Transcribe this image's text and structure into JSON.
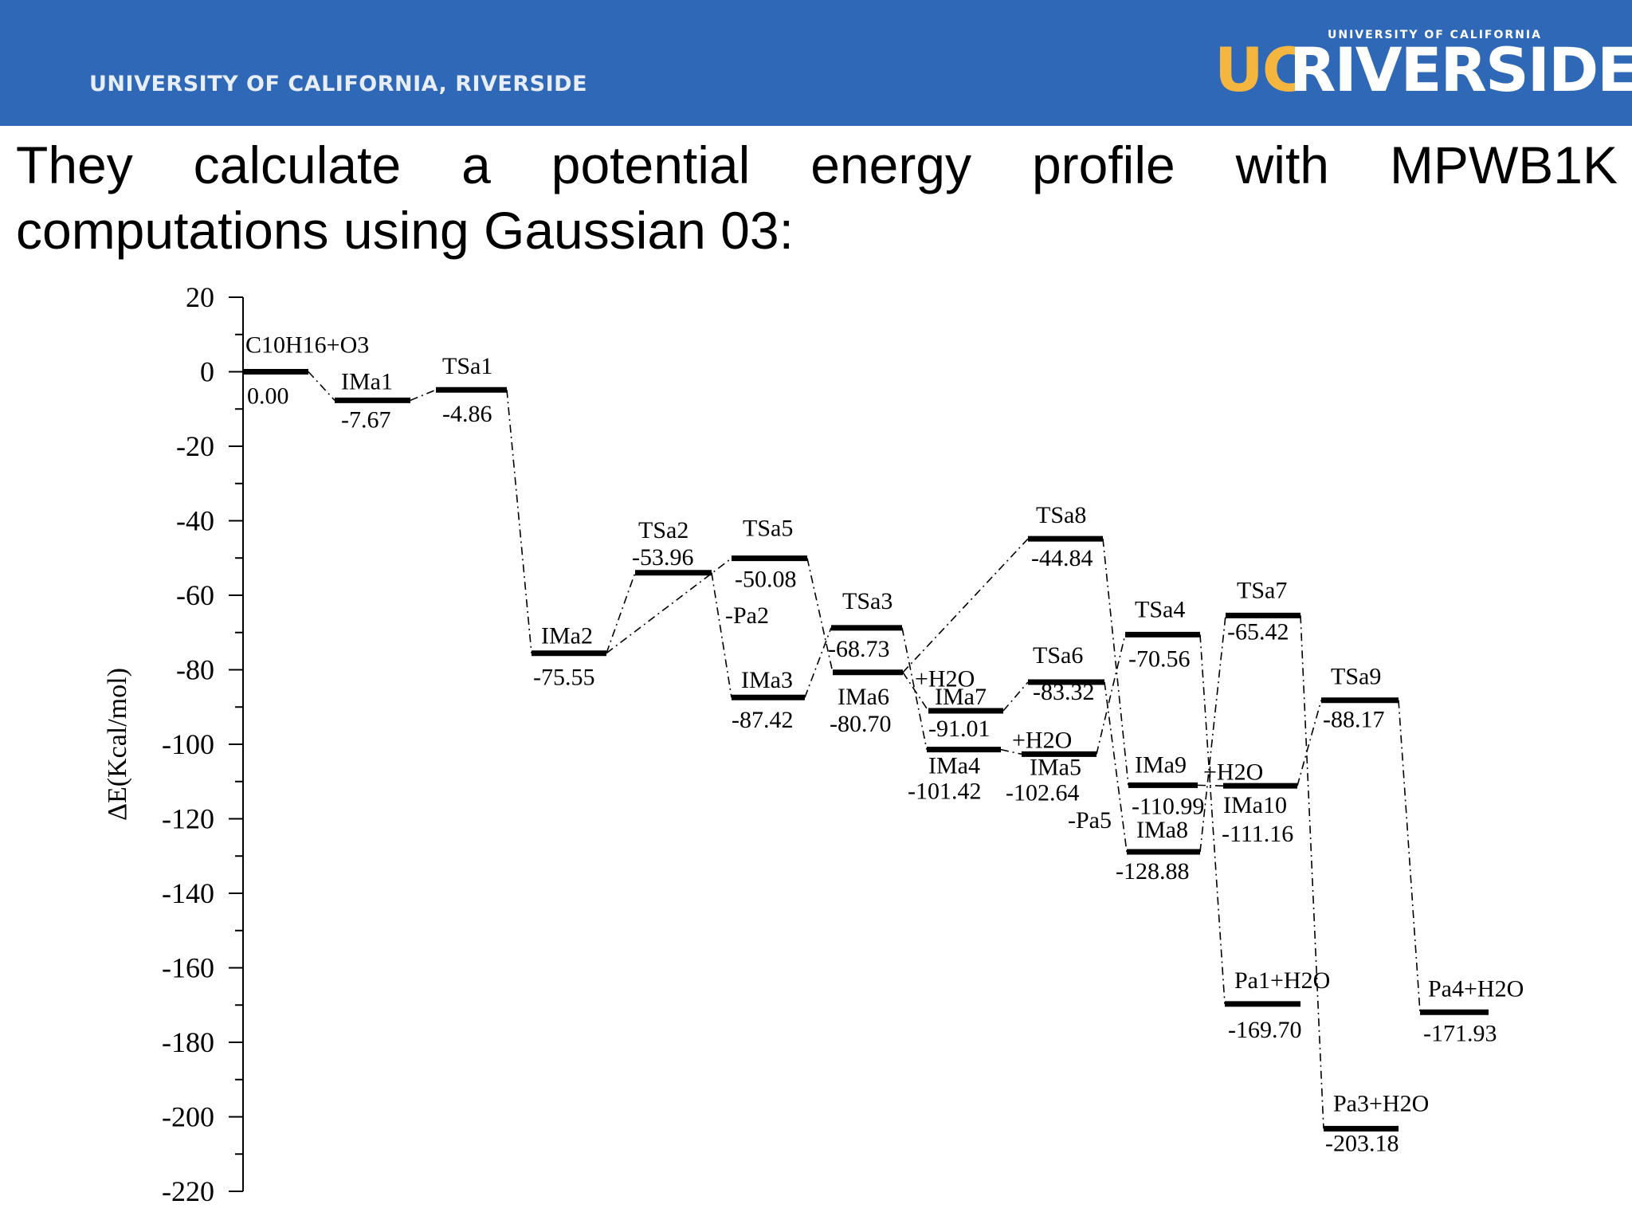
{
  "header": {
    "institution": "UNIVERSITY OF CALIFORNIA, RIVERSIDE",
    "logo_uc": "UC",
    "logo_riverside": "RIVERSIDE",
    "logo_small": "UNIVERSITY OF CALIFORNIA"
  },
  "slide": {
    "heading": "They calculate a potential energy profile with MPWB1K computations using Gaussian 03:"
  },
  "colors": {
    "banner": "#2f68b7",
    "logo_gold": "#f4b63f"
  },
  "chart_data": {
    "type": "energy-profile",
    "title": "",
    "xlabel": "",
    "ylabel": "ΔE(Kcal/mol)",
    "ylim": [
      -220,
      20
    ],
    "yticks": [
      20,
      0,
      -20,
      -40,
      -60,
      -80,
      -100,
      -120,
      -140,
      -160,
      -180,
      -200,
      -220
    ],
    "grid": false,
    "levels": [
      {
        "id": "start",
        "name": "C10H16+O3",
        "value": 0.0,
        "value_label": "0.00"
      },
      {
        "id": "IMa1",
        "name": "IMa1",
        "value": -7.67,
        "value_label": "-7.67"
      },
      {
        "id": "TSa1",
        "name": "TSa1",
        "value": -4.86,
        "value_label": "-4.86"
      },
      {
        "id": "IMa2",
        "name": "IMa2",
        "value": -75.55,
        "value_label": "-75.55"
      },
      {
        "id": "TSa2",
        "name": "TSa2",
        "value": -53.96,
        "value_label": "-53.96"
      },
      {
        "id": "TSa5",
        "name": "TSa5",
        "value": -50.08,
        "value_label": "-50.08"
      },
      {
        "id": "IMa3",
        "name": "IMa3",
        "value": -87.42,
        "value_label": "-87.42"
      },
      {
        "id": "TSa3",
        "name": "TSa3",
        "value": -68.73,
        "value_label": "-68.73"
      },
      {
        "id": "IMa6",
        "name": "IMa6",
        "value": -80.7,
        "value_label": "-80.70"
      },
      {
        "id": "IMa7",
        "name": "IMa7",
        "value": -91.01,
        "value_label": "-91.01"
      },
      {
        "id": "IMa4",
        "name": "IMa4",
        "value": -101.42,
        "value_label": "-101.42"
      },
      {
        "id": "TSa8",
        "name": "TSa8",
        "value": -44.84,
        "value_label": "-44.84"
      },
      {
        "id": "TSa6",
        "name": "TSa6",
        "value": -83.32,
        "value_label": "-83.32"
      },
      {
        "id": "IMa5",
        "name": "IMa5",
        "value": -102.64,
        "value_label": "-102.64"
      },
      {
        "id": "TSa4",
        "name": "TSa4",
        "value": -70.56,
        "value_label": "-70.56"
      },
      {
        "id": "IMa9",
        "name": "IMa9",
        "value": -110.99,
        "value_label": "-110.99"
      },
      {
        "id": "IMa8",
        "name": "IMa8",
        "value": -128.88,
        "value_label": "-128.88"
      },
      {
        "id": "TSa7",
        "name": "TSa7",
        "value": -65.42,
        "value_label": "-65.42"
      },
      {
        "id": "IMa10",
        "name": "IMa10",
        "value": -111.16,
        "value_label": "-111.16"
      },
      {
        "id": "Pa1",
        "name": "Pa1+H2O",
        "value": -169.7,
        "value_label": "-169.70"
      },
      {
        "id": "TSa9",
        "name": "TSa9",
        "value": -88.17,
        "value_label": "-88.17"
      },
      {
        "id": "Pa3",
        "name": "Pa3+H2O",
        "value": -203.18,
        "value_label": "-203.18"
      },
      {
        "id": "Pa4",
        "name": "Pa4+H2O",
        "value": -171.93,
        "value_label": "-171.93"
      }
    ],
    "side_labels": [
      "-Pa2",
      "-Pa5",
      "+H2O",
      "+H2O",
      "+H2O"
    ],
    "connections": [
      [
        "start",
        "IMa1"
      ],
      [
        "IMa1",
        "TSa1"
      ],
      [
        "TSa1",
        "IMa2"
      ],
      [
        "IMa2",
        "TSa2"
      ],
      [
        "IMa2",
        "TSa5"
      ],
      [
        "TSa2",
        "IMa3"
      ],
      [
        "TSa5",
        "IMa6"
      ],
      [
        "IMa3",
        "TSa3"
      ],
      [
        "TSa3",
        "IMa4"
      ],
      [
        "IMa6",
        "TSa8"
      ],
      [
        "IMa6",
        "IMa7"
      ],
      [
        "IMa7",
        "TSa6"
      ],
      [
        "IMa4",
        "IMa5"
      ],
      [
        "TSa8",
        "IMa9"
      ],
      [
        "TSa6",
        "IMa8"
      ],
      [
        "IMa5",
        "TSa4"
      ],
      [
        "TSa4",
        "Pa1"
      ],
      [
        "IMa9",
        "IMa10"
      ],
      [
        "IMa8",
        "TSa7"
      ],
      [
        "TSa7",
        "Pa3"
      ],
      [
        "IMa10",
        "TSa9"
      ],
      [
        "TSa9",
        "Pa4"
      ]
    ]
  }
}
